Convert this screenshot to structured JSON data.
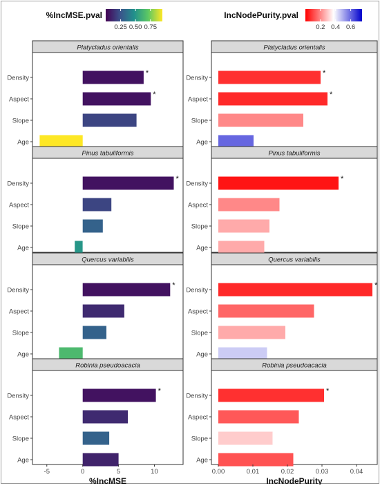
{
  "chart_data": [
    {
      "type": "bar",
      "orientation": "horizontal",
      "legend": {
        "title": "%IncMSE.pval",
        "kind": "colorbar",
        "palette": "viridis",
        "colors": [
          "#440154",
          "#3b528b",
          "#21908c",
          "#5dc863",
          "#fde725"
        ],
        "ticks": [
          "0.25",
          "0.50",
          "0.75"
        ],
        "tick_values": [
          0.25,
          0.5,
          0.75
        ],
        "range": [
          0.0,
          0.95
        ],
        "placement": "top"
      },
      "xlabel": "%IncMSE",
      "xlim": [
        -7,
        14
      ],
      "xticks": [
        -5,
        0,
        5,
        10
      ],
      "xtick_labels": [
        "-5",
        "0",
        "5",
        "10"
      ],
      "categories": [
        "Density",
        "Aspect",
        "Slope",
        "Age"
      ],
      "facets": [
        {
          "title": "Platycladus orientalis",
          "values": [
            8.5,
            9.5,
            7.5,
            -6.0
          ],
          "pvals": [
            0.05,
            0.05,
            0.2,
            0.95
          ],
          "stars": [
            "*",
            "*",
            "",
            ""
          ]
        },
        {
          "title": "Pinus tabuliformis",
          "values": [
            12.7,
            4.0,
            2.8,
            -1.1
          ],
          "pvals": [
            0.05,
            0.2,
            0.3,
            0.5
          ],
          "stars": [
            "*",
            "",
            "",
            ""
          ]
        },
        {
          "title": "Quercus variabilis",
          "values": [
            12.2,
            5.8,
            3.3,
            -3.3
          ],
          "pvals": [
            0.05,
            0.12,
            0.3,
            0.65
          ],
          "stars": [
            "*",
            "",
            "",
            ""
          ]
        },
        {
          "title": "Robinia pseudoacacia",
          "values": [
            10.2,
            6.3,
            3.7,
            5.0
          ],
          "pvals": [
            0.05,
            0.12,
            0.3,
            0.1
          ],
          "stars": [
            "*",
            "",
            "",
            ""
          ]
        }
      ]
    },
    {
      "type": "bar",
      "orientation": "horizontal",
      "legend": {
        "title": "IncNodePurity.pval",
        "kind": "colorbar",
        "palette": "red-white-blue",
        "colors": [
          "#ff0000",
          "#ffffff",
          "#0000cc"
        ],
        "ticks": [
          "0.2",
          "0.4",
          "0.6"
        ],
        "tick_values": [
          0.2,
          0.4,
          0.6
        ],
        "range": [
          0.0,
          0.75
        ],
        "placement": "top"
      },
      "xlabel": "IncNodePurity",
      "xlim": [
        -0.002,
        0.046
      ],
      "xticks": [
        0.0,
        0.01,
        0.02,
        0.03,
        0.04
      ],
      "xtick_labels": [
        "0.00",
        "0.01",
        "0.02",
        "0.03",
        "0.04"
      ],
      "categories": [
        "Density",
        "Aspect",
        "Slope",
        "Age"
      ],
      "facets": [
        {
          "title": "Platycladus orientalis",
          "values": [
            0.0296,
            0.0316,
            0.0246,
            0.0102
          ],
          "pvals": [
            0.07,
            0.06,
            0.2,
            0.6
          ],
          "stars": [
            "*",
            "*",
            "",
            ""
          ]
        },
        {
          "title": "Pinus tabuliformis",
          "values": [
            0.0348,
            0.0177,
            0.0148,
            0.0133
          ],
          "pvals": [
            0.03,
            0.2,
            0.25,
            0.25
          ],
          "stars": [
            "*",
            "",
            "",
            ""
          ]
        },
        {
          "title": "Quercus variabilis",
          "values": [
            0.0446,
            0.0277,
            0.0194,
            0.0141
          ],
          "pvals": [
            0.06,
            0.15,
            0.25,
            0.45
          ],
          "stars": [
            "*",
            "",
            "",
            ""
          ]
        },
        {
          "title": "Robinia pseudoacacia",
          "values": [
            0.0306,
            0.0233,
            0.0157,
            0.0217
          ],
          "pvals": [
            0.07,
            0.13,
            0.3,
            0.12
          ],
          "stars": [
            "*",
            "",
            "",
            ""
          ]
        }
      ]
    }
  ]
}
